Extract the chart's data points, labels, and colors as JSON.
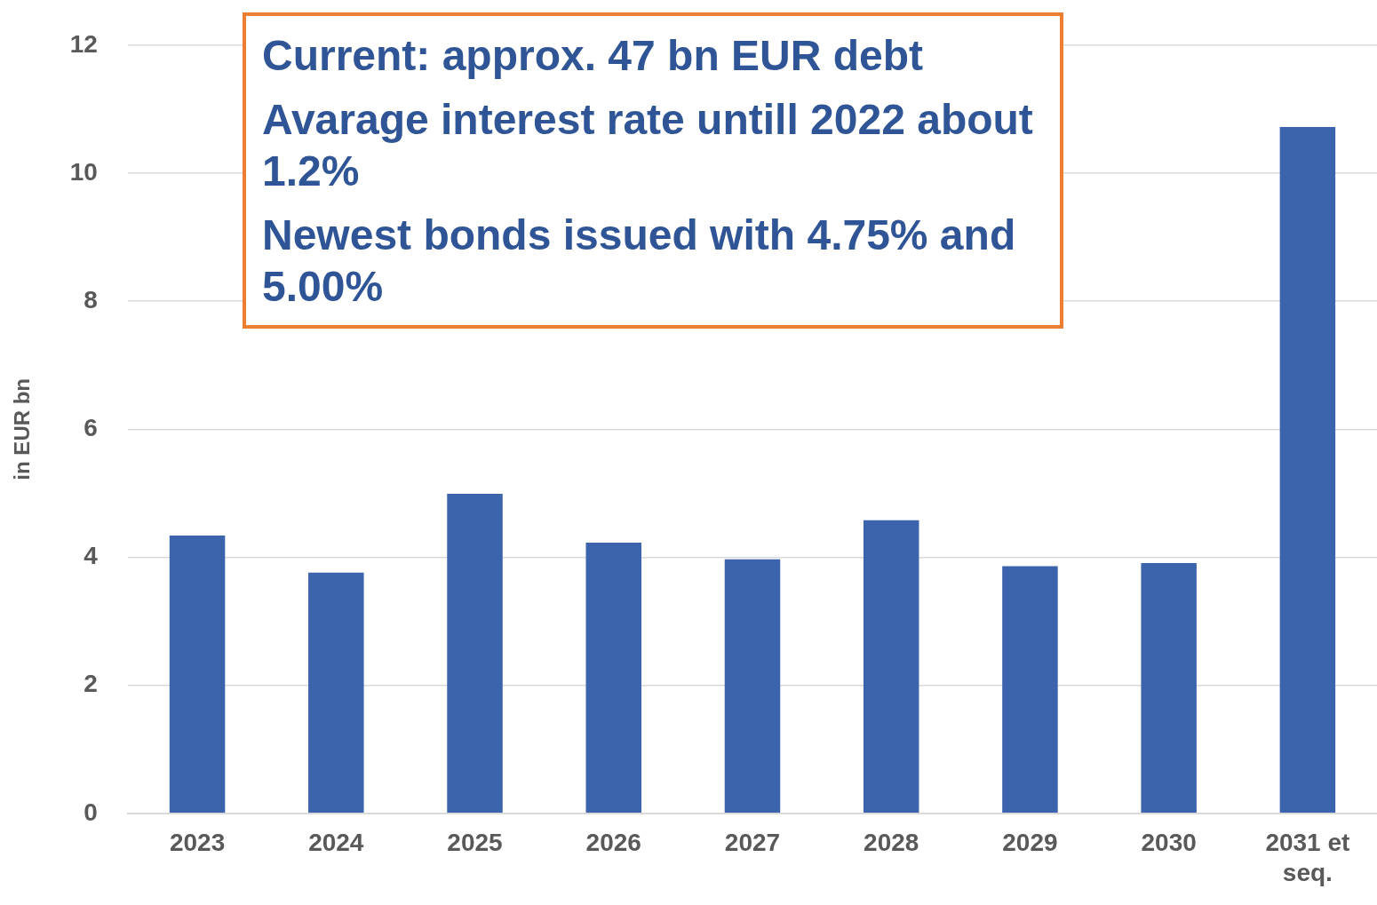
{
  "chart_data": {
    "type": "bar",
    "ylabel": "in EUR bn",
    "categories": [
      "2023",
      "2024",
      "2025",
      "2026",
      "2027",
      "2028",
      "2029",
      "2030",
      "2031 et seq."
    ],
    "values": [
      4.34,
      3.76,
      4.99,
      4.23,
      3.97,
      4.58,
      3.86,
      3.91,
      10.72
    ],
    "color": "#3c64ac",
    "ylim": [
      0,
      12
    ],
    "yticks": [
      0,
      2,
      4,
      6,
      8,
      10,
      12
    ],
    "grid": "y",
    "annotations": [
      "Current: approx. 47 bn EUR debt",
      "Avarage interest rate untill 2022 about 1.2%",
      "Newest bonds issued with 4.75% and 5.00%"
    ]
  }
}
